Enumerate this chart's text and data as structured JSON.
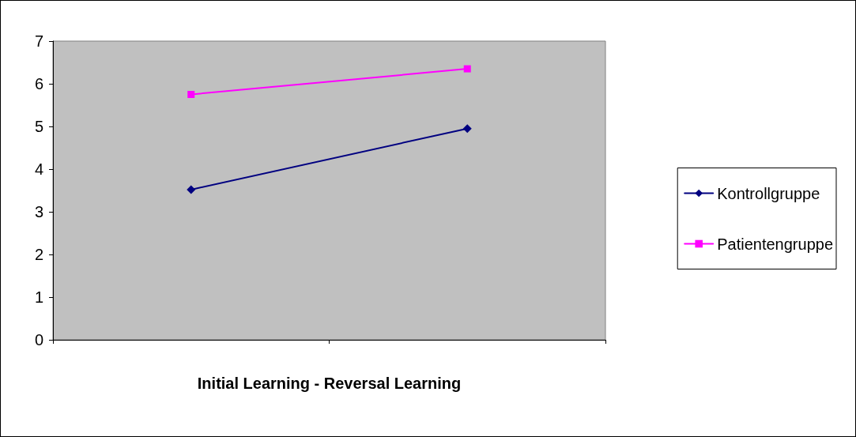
{
  "chart_data": {
    "type": "line",
    "xlabel": "Initial Learning - Reversal Learning",
    "categories": [
      null,
      null
    ],
    "series": [
      {
        "name": "Kontrollgruppe",
        "color": "#000080",
        "marker": "diamond",
        "values": [
          3.52,
          4.95
        ]
      },
      {
        "name": "Patientengruppe",
        "color": "#ff00ff",
        "marker": "square",
        "values": [
          5.75,
          6.35
        ]
      }
    ],
    "ylim": [
      0,
      7
    ],
    "yticks": [
      0,
      1,
      2,
      3,
      4,
      5,
      6,
      7
    ],
    "grid": false,
    "legend": "right",
    "line_style": "solid"
  }
}
